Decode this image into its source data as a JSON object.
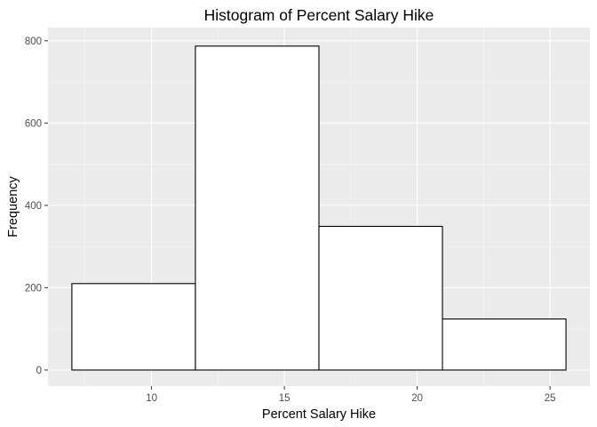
{
  "chart_data": {
    "type": "bar",
    "title": "Histogram of Percent Salary Hike",
    "xlabel": "Percent Salary Hike",
    "ylabel": "Frequency",
    "bins": [
      {
        "x0": 7.0,
        "x1": 11.65,
        "count": 210
      },
      {
        "x0": 11.65,
        "x1": 16.3,
        "count": 787
      },
      {
        "x0": 16.3,
        "x1": 20.95,
        "count": 349
      },
      {
        "x0": 20.95,
        "x1": 25.6,
        "count": 124
      }
    ],
    "xlim": [
      6.1,
      26.5
    ],
    "ylim": [
      -39,
      832
    ],
    "xticks": [
      10,
      15,
      20,
      25
    ],
    "yticks": [
      0,
      200,
      400,
      600,
      800
    ],
    "x_minor_breaks": [
      7.5,
      12.5,
      17.5,
      22.5
    ],
    "y_minor_breaks": [
      100,
      300,
      500,
      700
    ],
    "grid": true,
    "legend": "none",
    "colors": {
      "panel_background": "#ebebeb",
      "grid_major": "#ffffff",
      "grid_minor": "#f5f5f5",
      "bar_fill": "#ffffff",
      "bar_outline": "#000000",
      "tick_text": "#4d4d4d",
      "tick_mark": "#333333"
    }
  }
}
